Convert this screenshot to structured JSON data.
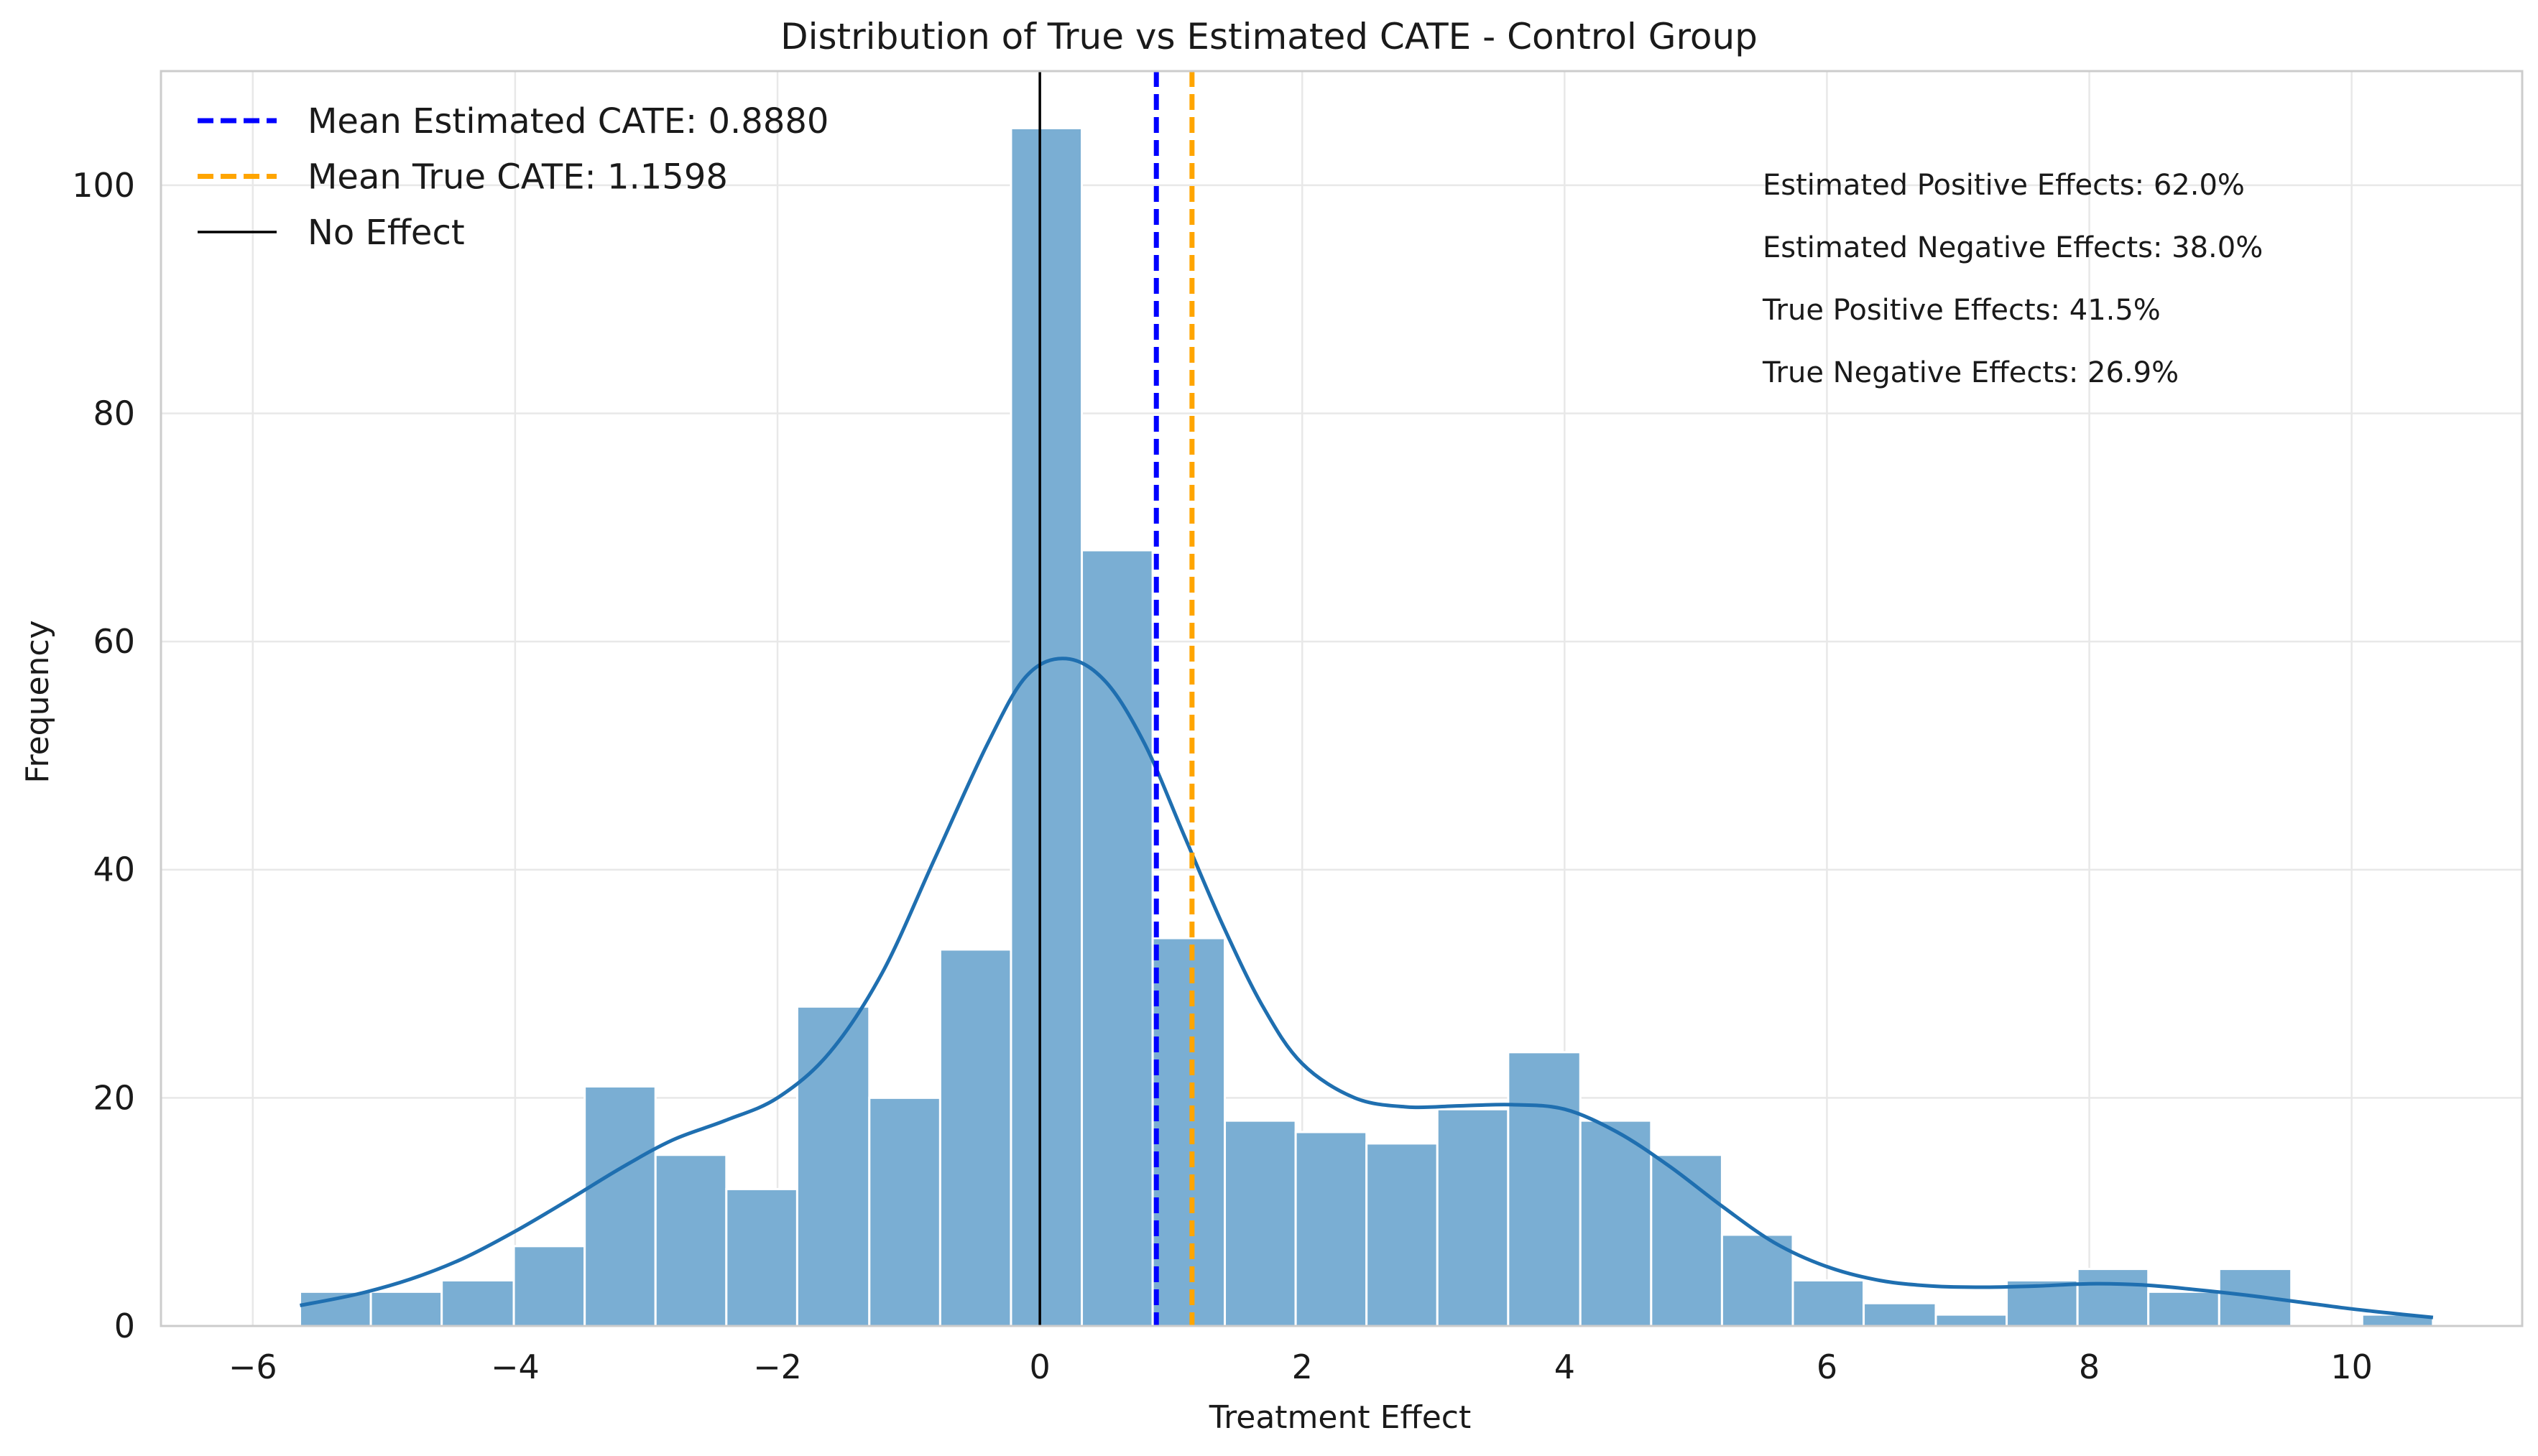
{
  "chart_data": {
    "type": "bar",
    "title": "Distribution of True vs Estimated CATE - Control Group",
    "xlabel": "Treatment Effect",
    "ylabel": "Frequency",
    "xlim": [
      -6.7,
      11.3
    ],
    "ylim": [
      0,
      110
    ],
    "xticks": [
      -6,
      -4,
      -2,
      0,
      2,
      4,
      6,
      8,
      10
    ],
    "yticks": [
      0,
      20,
      40,
      60,
      80,
      100
    ],
    "xtick_labels": [
      "−6",
      "−4",
      "−2",
      "0",
      "2",
      "4",
      "6",
      "8",
      "10"
    ],
    "ytick_labels": [
      "0",
      "20",
      "40",
      "60",
      "80",
      "100"
    ],
    "grid": true,
    "bin_width": 0.542,
    "bins": [
      {
        "x0": -5.64,
        "x1": -5.1,
        "count": 3
      },
      {
        "x0": -5.1,
        "x1": -4.56,
        "count": 3
      },
      {
        "x0": -4.56,
        "x1": -4.01,
        "count": 4
      },
      {
        "x0": -4.01,
        "x1": -3.47,
        "count": 7
      },
      {
        "x0": -3.47,
        "x1": -2.93,
        "count": 21
      },
      {
        "x0": -2.93,
        "x1": -2.39,
        "count": 15
      },
      {
        "x0": -2.39,
        "x1": -1.85,
        "count": 12
      },
      {
        "x0": -1.85,
        "x1": -1.3,
        "count": 28
      },
      {
        "x0": -1.3,
        "x1": -0.76,
        "count": 20
      },
      {
        "x0": -0.76,
        "x1": -0.22,
        "count": 33
      },
      {
        "x0": -0.22,
        "x1": 0.32,
        "count": 105
      },
      {
        "x0": 0.32,
        "x1": 0.86,
        "count": 68
      },
      {
        "x0": 0.86,
        "x1": 1.41,
        "count": 34
      },
      {
        "x0": 1.41,
        "x1": 1.95,
        "count": 18
      },
      {
        "x0": 1.95,
        "x1": 2.49,
        "count": 17
      },
      {
        "x0": 2.49,
        "x1": 3.03,
        "count": 16
      },
      {
        "x0": 3.03,
        "x1": 3.57,
        "count": 19
      },
      {
        "x0": 3.57,
        "x1": 4.12,
        "count": 24
      },
      {
        "x0": 4.12,
        "x1": 4.66,
        "count": 18
      },
      {
        "x0": 4.66,
        "x1": 5.2,
        "count": 15
      },
      {
        "x0": 5.2,
        "x1": 5.74,
        "count": 8
      },
      {
        "x0": 5.74,
        "x1": 6.28,
        "count": 4
      },
      {
        "x0": 6.28,
        "x1": 6.83,
        "count": 2
      },
      {
        "x0": 6.83,
        "x1": 7.37,
        "count": 1
      },
      {
        "x0": 7.37,
        "x1": 7.91,
        "count": 4
      },
      {
        "x0": 7.91,
        "x1": 8.45,
        "count": 5
      },
      {
        "x0": 8.45,
        "x1": 8.99,
        "count": 3
      },
      {
        "x0": 8.99,
        "x1": 9.54,
        "count": 5
      },
      {
        "x0": 9.54,
        "x1": 10.08,
        "count": 0
      },
      {
        "x0": 10.08,
        "x1": 10.62,
        "count": 1
      }
    ],
    "kde": [
      [
        -5.64,
        1.8
      ],
      [
        -5.2,
        2.8
      ],
      [
        -4.8,
        4.1
      ],
      [
        -4.4,
        5.9
      ],
      [
        -4.0,
        8.3
      ],
      [
        -3.6,
        11.0
      ],
      [
        -3.2,
        13.8
      ],
      [
        -2.8,
        16.3
      ],
      [
        -2.4,
        18.0
      ],
      [
        -2.0,
        20.0
      ],
      [
        -1.6,
        24.0
      ],
      [
        -1.2,
        31.0
      ],
      [
        -0.8,
        41.0
      ],
      [
        -0.4,
        51.0
      ],
      [
        -0.1,
        57.0
      ],
      [
        0.2,
        58.5
      ],
      [
        0.5,
        56.5
      ],
      [
        0.8,
        51.0
      ],
      [
        1.1,
        43.0
      ],
      [
        1.4,
        35.0
      ],
      [
        1.7,
        28.0
      ],
      [
        2.0,
        23.0
      ],
      [
        2.4,
        20.0
      ],
      [
        2.8,
        19.2
      ],
      [
        3.2,
        19.3
      ],
      [
        3.6,
        19.4
      ],
      [
        4.0,
        19.0
      ],
      [
        4.4,
        17.0
      ],
      [
        4.8,
        14.0
      ],
      [
        5.2,
        10.5
      ],
      [
        5.6,
        7.3
      ],
      [
        6.0,
        5.2
      ],
      [
        6.4,
        4.0
      ],
      [
        6.8,
        3.5
      ],
      [
        7.2,
        3.4
      ],
      [
        7.6,
        3.5
      ],
      [
        8.0,
        3.7
      ],
      [
        8.4,
        3.6
      ],
      [
        8.8,
        3.2
      ],
      [
        9.2,
        2.7
      ],
      [
        9.6,
        2.1
      ],
      [
        10.0,
        1.5
      ],
      [
        10.4,
        1.0
      ],
      [
        10.62,
        0.75
      ]
    ],
    "vlines": [
      {
        "x": 0.888,
        "style": "dashed",
        "color": "#0000ff",
        "label": "Mean Estimated CATE: 0.8880"
      },
      {
        "x": 1.1598,
        "style": "dashed",
        "color": "#ffa500",
        "label": "Mean True CATE: 1.1598"
      },
      {
        "x": 0,
        "style": "solid",
        "color": "#000000",
        "label": "No Effect"
      }
    ],
    "legend_position": "top-left",
    "annotations": [
      "Estimated Positive Effects: 62.0%",
      "Estimated Negative Effects: 38.0%",
      "True Positive Effects: 41.5%",
      "True Negative Effects: 26.9%"
    ],
    "colors": {
      "bar_fill": "#7aaed3",
      "bar_edge": "#ffffff",
      "kde_line": "#1f6fb0",
      "grid": "#e8e8e8",
      "axis": "#cccccc"
    }
  }
}
